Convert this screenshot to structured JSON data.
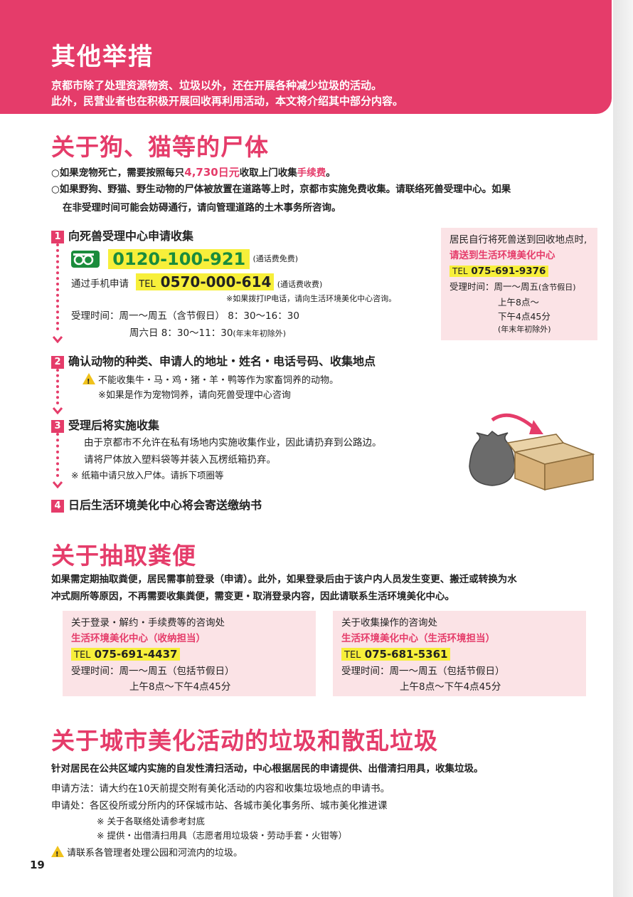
{
  "header": {
    "title": "其他举措",
    "line1": "京都市除了处理资源物资、垃圾以外，还在开展各种减少垃圾的活动。",
    "line2": "此外，民营业者也在积极开展回收再利用活动，本文将介绍其中部分内容。"
  },
  "pets": {
    "title": "关于狗、猫等的尸体",
    "p1_a": "○如果宠物死亡，需要按照每只",
    "p1_price": "4,730日元",
    "p1_b": "收取上门收集",
    "p1_fee": "手续费",
    "p1_c": "。",
    "p2_line1": "○如果野狗、野猫、野生动物的尸体被放置在道路等上时，京都市实施免费收集。请联络死兽受理中心。如果",
    "p2_line2": "在非受理时间可能会妨碍通行，请向管理道路的土木事务所咨询。",
    "steps": [
      {
        "num": "1",
        "title": "向死兽受理中心申请收集"
      },
      {
        "num": "2",
        "title": "确认动物的种类、申请人的地址・姓名・电话号码、收集地点"
      },
      {
        "num": "3",
        "title": "受理后将实施收集"
      },
      {
        "num": "4",
        "title": "日后生活环境美化中心将会寄送缴纳书"
      }
    ],
    "freedial_icon": "free-dial-icon",
    "freedial_number": "0120-100-921",
    "freedial_note": "(通话费免费)",
    "mobile_label": "通过手机申请",
    "mobile_tel_label": "TEL",
    "mobile_tel": "0570-000-614",
    "mobile_note": "(通话费收费)",
    "ip_note": "※如果拨打IP电话，请向生活环境美化中心咨询。",
    "hours_line1": "受理时间：周一～周五（含节假日）  8：30～16：30",
    "hours_line2_a": "周六日  8：30～11：30",
    "hours_line2_b": "(年末年初除外)",
    "step2_warn": "不能收集牛・马・鸡・猪・羊・鸭等作为家畜饲养的动物。",
    "step2_note": "※如果是作为宠物饲养，请向死兽受理中心咨询",
    "step3_line1": "由于京都市不允许在私有场地内实施收集作业，因此请扔弃到公路边。",
    "step3_line2": "请将尸体放入塑料袋等并装入瓦楞纸箱扔弃。",
    "step3_note": "※ 纸箱中请只放入尸体。请拆下项圈等",
    "side": {
      "line1": "居民自行将死兽送到回收地点时,",
      "line2": "请送到生活环境美化中心",
      "tel_label": "TEL",
      "tel": "075-691-9376",
      "hours1_a": "受理时间：周一～周五",
      "hours1_b": "(含节假日)",
      "hours2": "上午8点～",
      "hours3": "下午4点45分",
      "hours4": "(年末年初除外)"
    }
  },
  "toilet": {
    "title": "关于抽取粪便",
    "p_line1": "如果需定期抽取粪便，居民需事前登录（申请）。此外，如果登录后由于该户内人员发生变更、搬迁或转换为水",
    "p_line2": "冲式厕所等原因，不再需要收集粪便，需变更・取消登录内容，因此请联系生活环境美化中心。",
    "box1": {
      "heading": "关于登录・解约・手续费等的咨询处",
      "center": "生活环境美化中心（收纳担当）",
      "tel_label": "TEL",
      "tel": "075-691-4437",
      "hours1": "受理时间：周一～周五（包括节假日）",
      "hours2": "上午8点～下午4点45分"
    },
    "box2": {
      "heading": "关于收集操作的咨询处",
      "center": "生活环境美化中心（生活环境担当）",
      "tel_label": "TEL",
      "tel": "075-681-5361",
      "hours1": "受理时间：周一～周五（包括节假日）",
      "hours2": "上午8点～下午4点45分"
    }
  },
  "cleanup": {
    "title": "关于城市美化活动的垃圾和散乱垃圾",
    "intro": "针对居民在公共区域内实施的自发性清扫活动，中心根据居民的申请提供、出借清扫用具，收集垃圾。",
    "line1": "申请方法：请大约在10天前提交附有美化活动的内容和收集垃圾地点的申请书。",
    "line2": "申请处：各区役所或分所内的环保城市站、各城市美化事务所、城市美化推进课",
    "note1": "※ 关于各联络处请参考封底",
    "note2": "※ 提供・出借清扫用具（志愿者用垃圾袋・劳动手套・火钳等）",
    "warn": "请联系各管理者处理公园和河流内的垃圾。"
  },
  "page_number": "19",
  "colors": {
    "accent": "#e53c6a",
    "highlight": "#f7ef3a",
    "box": "#fbe3e6",
    "freedial": "#1a8c3c"
  }
}
